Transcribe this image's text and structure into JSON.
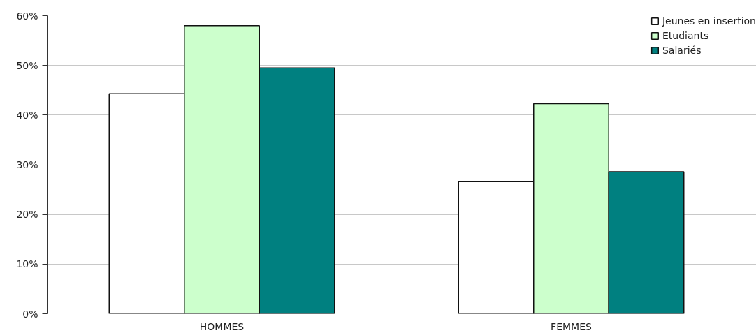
{
  "chart_data": {
    "type": "bar",
    "categories": [
      "HOMMES",
      "FEMMES"
    ],
    "series": [
      {
        "name": "Jeunes en insertion",
        "color": "#ffffff",
        "values": [
          44.3,
          26.6
        ]
      },
      {
        "name": "Etudiants",
        "color": "#ccffcc",
        "values": [
          58.0,
          42.3
        ]
      },
      {
        "name": "Salariés",
        "color": "#008080",
        "values": [
          49.5,
          28.6
        ]
      }
    ],
    "ylim": [
      0,
      60
    ],
    "yticks": [
      {
        "value": 0,
        "label": "0%"
      },
      {
        "value": 10,
        "label": "10%"
      },
      {
        "value": 20,
        "label": "20%"
      },
      {
        "value": 30,
        "label": "30%"
      },
      {
        "value": 40,
        "label": "40%"
      },
      {
        "value": 50,
        "label": "50%"
      },
      {
        "value": 60,
        "label": "60%"
      }
    ],
    "grid": "y",
    "legend": "top right"
  }
}
